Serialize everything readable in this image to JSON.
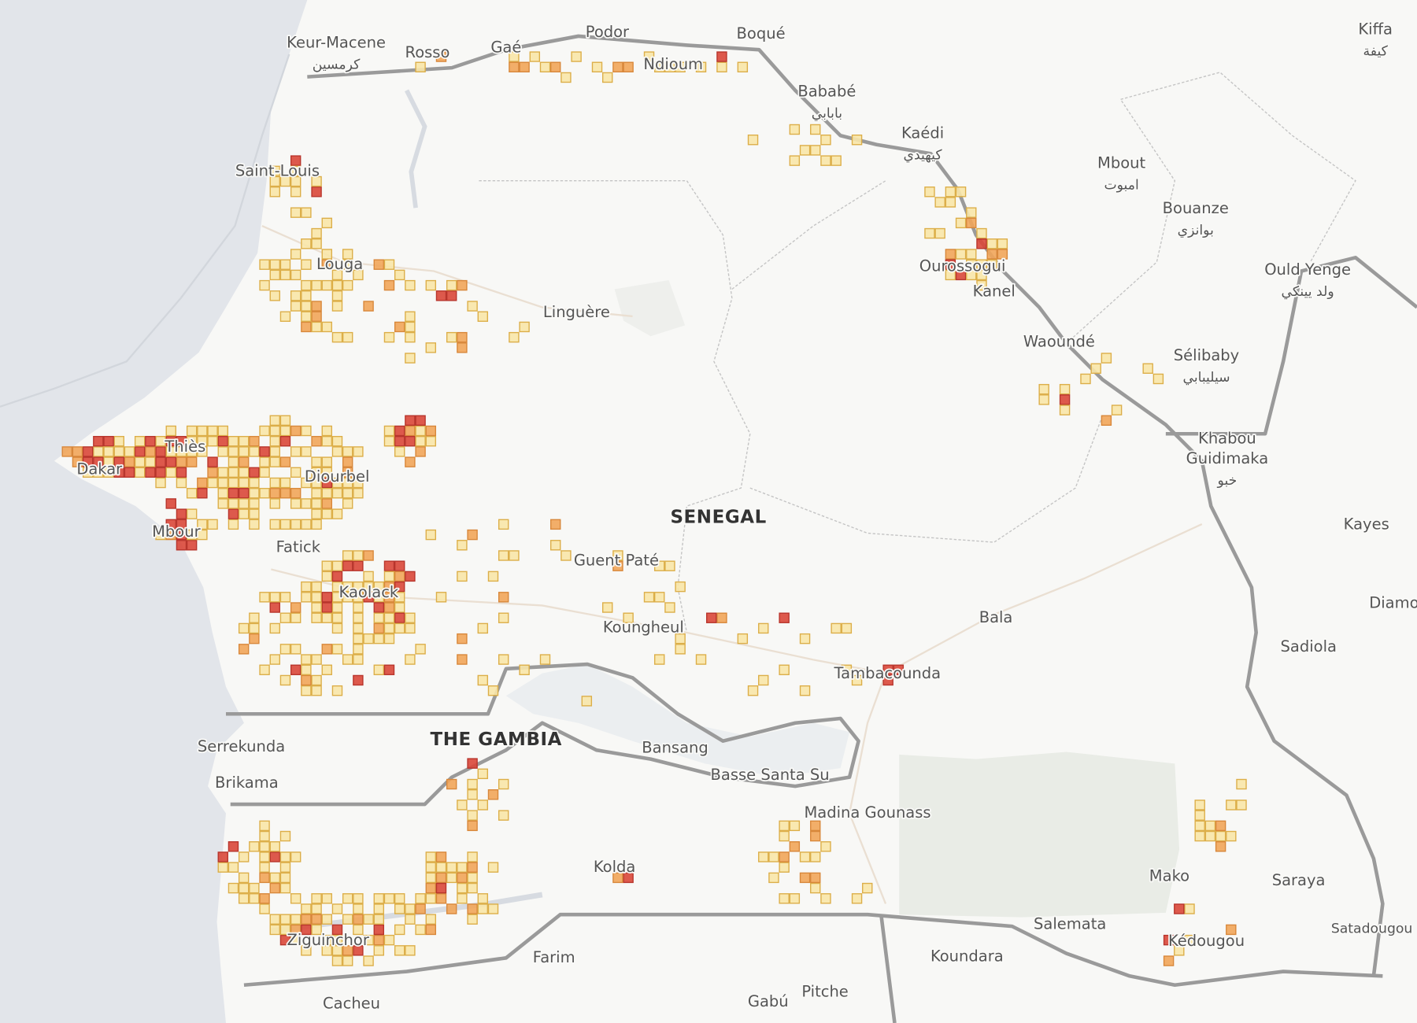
{
  "places": [
    {
      "name": "Keur-Macene",
      "arabic": "كرمسين"
    },
    {
      "name": "Rosso"
    },
    {
      "name": "Gaé"
    },
    {
      "name": "Podor"
    },
    {
      "name": "Boqué"
    },
    {
      "name": "Ndioum"
    },
    {
      "name": "Bababé",
      "arabic": "بابابي"
    },
    {
      "name": "Kaédi",
      "arabic": "كيهيدي"
    },
    {
      "name": "Mbout",
      "arabic": "امبوت"
    },
    {
      "name": "Bouanze",
      "arabic": "بوانزي"
    },
    {
      "name": "Ould Yenge",
      "arabic": "ولد يينكي"
    },
    {
      "name": "Kiffa",
      "arabic": "كيفة"
    },
    {
      "name": "Saint-Louis"
    },
    {
      "name": "Louga"
    },
    {
      "name": "Linguère"
    },
    {
      "name": "Ourossogui"
    },
    {
      "name": "Kanel"
    },
    {
      "name": "Waoundé"
    },
    {
      "name": "Sélibaby",
      "arabic": "سيليبابي"
    },
    {
      "name": "Khabou"
    },
    {
      "name": "Guidimaka",
      "arabic": "خبو"
    },
    {
      "name": "Kayes"
    },
    {
      "name": "Diamou"
    },
    {
      "name": "Sadiola"
    },
    {
      "name": "SENEGAL"
    },
    {
      "name": "Guent Paté"
    },
    {
      "name": "Thiès"
    },
    {
      "name": "Dakar"
    },
    {
      "name": "Diourbel"
    },
    {
      "name": "Mbour"
    },
    {
      "name": "Fatick"
    },
    {
      "name": "Kaolack"
    },
    {
      "name": "Koungheul"
    },
    {
      "name": "Bala"
    },
    {
      "name": "Tambacounda"
    },
    {
      "name": "THE GAMBIA"
    },
    {
      "name": "Serrekunda"
    },
    {
      "name": "Brikama"
    },
    {
      "name": "Bansang"
    },
    {
      "name": "Basse Santa Su"
    },
    {
      "name": "Madina Gounass"
    },
    {
      "name": "Kolda"
    },
    {
      "name": "Ziguinchor"
    },
    {
      "name": "Farim"
    },
    {
      "name": "Cacheu"
    },
    {
      "name": "Gabú"
    },
    {
      "name": "Pitche"
    },
    {
      "name": "Koundara"
    },
    {
      "name": "Salemata"
    },
    {
      "name": "Mako"
    },
    {
      "name": "Saraya"
    },
    {
      "name": "Kédougou"
    },
    {
      "name": "Satadougou"
    }
  ]
}
